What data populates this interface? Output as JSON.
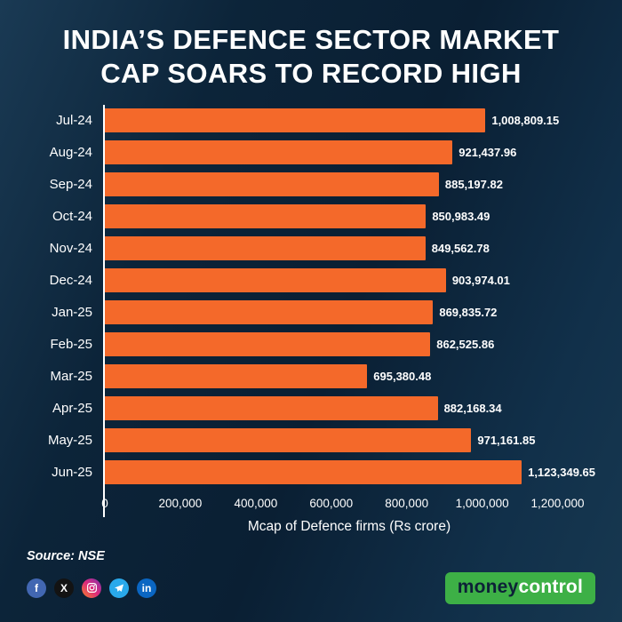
{
  "title": {
    "lines": [
      "INDIA’S DEFENCE SECTOR MARKET",
      "CAP SOARS TO RECORD HIGH"
    ]
  },
  "chart_data": {
    "type": "bar",
    "orientation": "horizontal",
    "title": "INDIA’S DEFENCE SECTOR MARKET CAP SOARS TO RECORD HIGH",
    "categories": [
      "Jul-24",
      "Aug-24",
      "Sep-24",
      "Oct-24",
      "Nov-24",
      "Dec-24",
      "Jan-25",
      "Feb-25",
      "Mar-25",
      "Apr-25",
      "May-25",
      "Jun-25"
    ],
    "values": [
      1008809.15,
      921437.96,
      885197.82,
      850983.49,
      849562.78,
      903974.01,
      869835.72,
      862525.86,
      695380.48,
      882168.34,
      971161.85,
      1123349.65
    ],
    "value_labels": [
      "1,008,809.15",
      "921,437.96",
      "885,197.82",
      "850,983.49",
      "849,562.78",
      "903,974.01",
      "869,835.72",
      "862,525.86",
      "695,380.48",
      "882,168.34",
      "971,161.85",
      "1,123,349.65"
    ],
    "xlabel": "Mcap of Defence firms (Rs crore)",
    "x_tick_values": [
      0,
      200000,
      400000,
      600000,
      800000,
      1000000,
      1200000
    ],
    "x_tick_labels": [
      "0",
      "200,000",
      "400,000",
      "600,000",
      "800,000",
      "1,000,000",
      "1,200,000"
    ],
    "xlim": [
      0,
      1300000
    ],
    "grid": false,
    "legend": null,
    "bar_color": "#f4692a",
    "axis_color": "#ffffff",
    "background_color": "#0a1f33"
  },
  "source": "Source: NSE",
  "footer": {
    "social": [
      {
        "name": "facebook",
        "glyph": "f",
        "color": "#4267b2"
      },
      {
        "name": "x",
        "glyph": "X",
        "color": "#131313"
      },
      {
        "name": "instagram",
        "glyph": "",
        "color": "#c13584"
      },
      {
        "name": "telegram",
        "glyph": "",
        "color": "#29a9eb"
      },
      {
        "name": "linkedin",
        "glyph": "in",
        "color": "#0a66c2"
      }
    ],
    "logo": {
      "text_primary": "money",
      "text_secondary": "control",
      "bg_color": "#3db046",
      "primary_color": "#0d2137",
      "secondary_color": "#ffffff"
    }
  }
}
